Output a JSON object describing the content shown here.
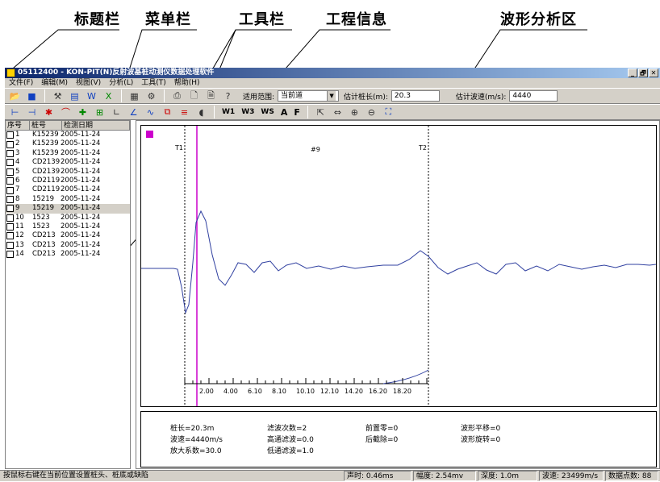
{
  "annotations": {
    "title_bar": "标题栏",
    "menu_bar": "菜单栏",
    "toolbar": "工具栏",
    "project_info": "工程信息",
    "waveform_area": "波形分析区"
  },
  "window": {
    "title": "05112400 - KON-PIT(N)反射波基桩动测仪数据处理软件",
    "min": "_",
    "max": "🗗",
    "close": "✕"
  },
  "menu": [
    "文件(F)",
    "编辑(M)",
    "视图(V)",
    "分析(L)",
    "工具(T)",
    "帮助(H)"
  ],
  "toolbar1": {
    "range_label": "适用范围:",
    "range_value": "当前道",
    "length_label": "估计桩长(m):",
    "length_value": "20.3",
    "speed_label": "估计波速(m/s):",
    "speed_value": "4440"
  },
  "toolbar2": {
    "w1": "W1",
    "w3": "W3",
    "ws": "WS",
    "a": "A",
    "f": "F"
  },
  "list": {
    "headers": [
      "序号",
      "桩号",
      "检测日期"
    ],
    "rows": [
      {
        "no": "1",
        "id": "K15239",
        "date": "2005-11-24"
      },
      {
        "no": "2",
        "id": "K15239",
        "date": "2005-11-24"
      },
      {
        "no": "3",
        "id": "K15239",
        "date": "2005-11-24"
      },
      {
        "no": "4",
        "id": "CD2139",
        "date": "2005-11-24"
      },
      {
        "no": "5",
        "id": "CD2139",
        "date": "2005-11-24"
      },
      {
        "no": "6",
        "id": "CD2119",
        "date": "2005-11-24"
      },
      {
        "no": "7",
        "id": "CD2119",
        "date": "2005-11-24"
      },
      {
        "no": "8",
        "id": "15219",
        "date": "2005-11-24"
      },
      {
        "no": "9",
        "id": "15219",
        "date": "2005-11-24"
      },
      {
        "no": "10",
        "id": "1523",
        "date": "2005-11-24"
      },
      {
        "no": "11",
        "id": "1523",
        "date": "2005-11-24"
      },
      {
        "no": "12",
        "id": "CD213",
        "date": "2005-11-24"
      },
      {
        "no": "13",
        "id": "CD213",
        "date": "2005-11-24"
      },
      {
        "no": "14",
        "id": "CD213",
        "date": "2005-11-24"
      }
    ],
    "selected_no": "9"
  },
  "plot": {
    "t1": "T1",
    "t2": "T2",
    "trace": "#9",
    "ticks": [
      "2.00",
      "4.00",
      "6.10",
      "8.10",
      "10.10",
      "12.10",
      "14.20",
      "16.20",
      "18.20"
    ],
    "marker_color": "#cc00cc",
    "wave_color": "#3040a0",
    "cursor_color": "#cc00cc"
  },
  "params": {
    "length": "桩长=20.3m",
    "speed": "波速=4440m/s",
    "gain": "放大系数=30.0",
    "filter_count": "滤波次数=2",
    "highpass": "高通滤波=0.0",
    "lowpass": "低通滤波=1.0",
    "pre_zero": "前置零=0",
    "post_cut": "后截除=0",
    "shift": "波形平移=0",
    "rotate": "波形旋转=0"
  },
  "status": {
    "hint": "按鼠标右键在当前位置设置桩头、桩底或缺陷",
    "time": "声时: 0.46ms",
    "amp": "幅度: 2.54mv",
    "depth": "深度: 1.0m",
    "wavespeed": "波速: 23499m/s",
    "points": "数据点数: 88"
  }
}
